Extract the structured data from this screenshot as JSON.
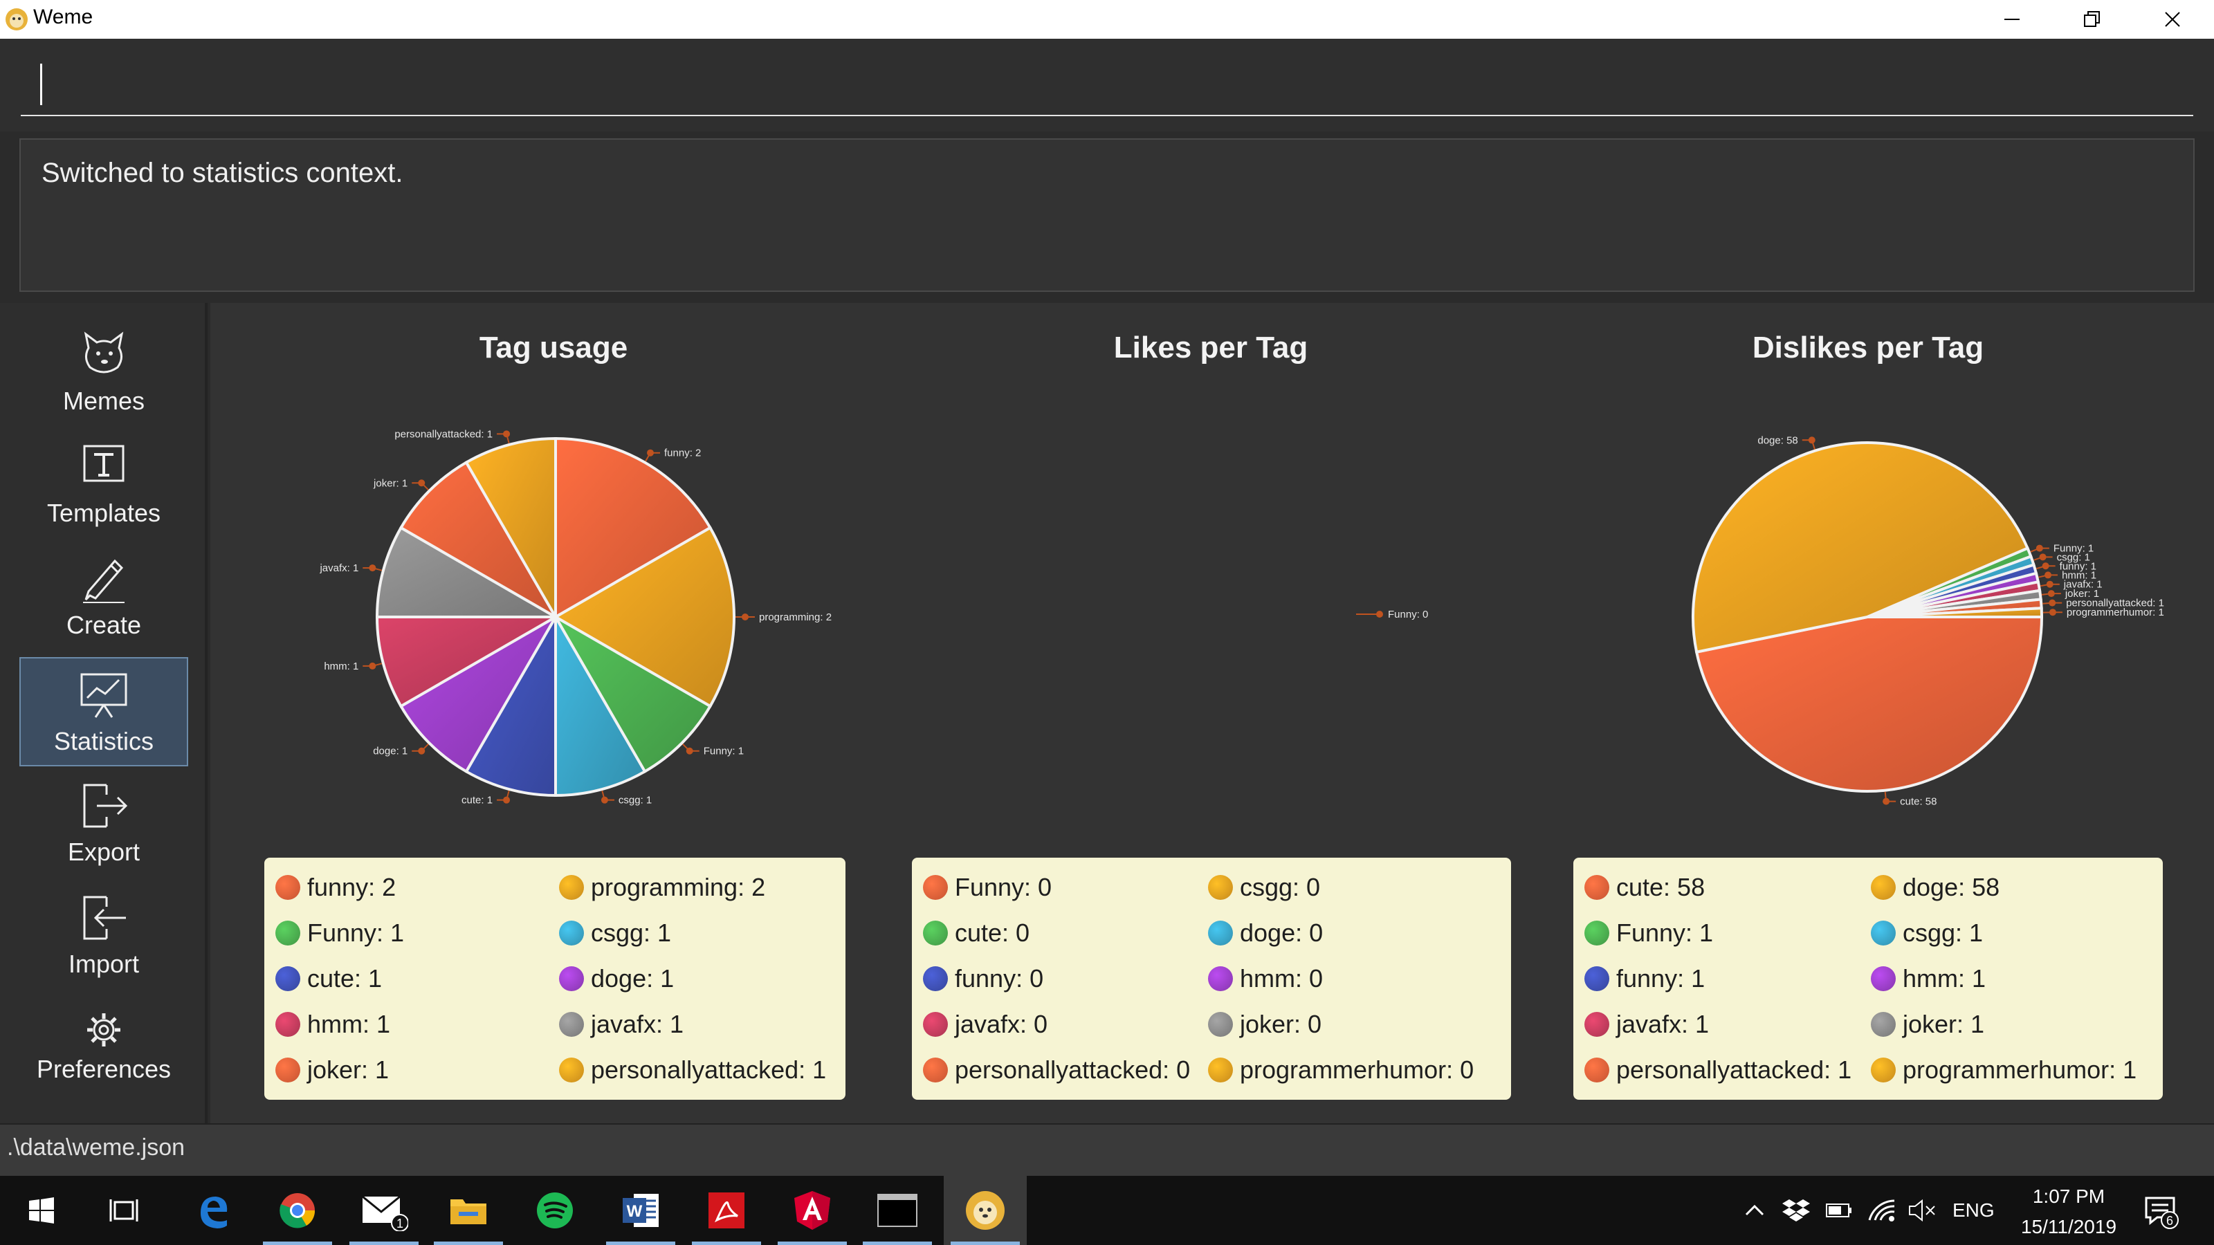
{
  "window": {
    "title": "Weme"
  },
  "command": {
    "value": ""
  },
  "result": {
    "text": "Switched to statistics context."
  },
  "sidebar": {
    "items": [
      {
        "label": "Memes",
        "icon": "doge-icon"
      },
      {
        "label": "Templates",
        "icon": "template-icon"
      },
      {
        "label": "Create",
        "icon": "pencil-icon"
      },
      {
        "label": "Statistics",
        "icon": "statistics-icon",
        "active": true
      },
      {
        "label": "Export",
        "icon": "export-icon"
      },
      {
        "label": "Import",
        "icon": "import-icon"
      },
      {
        "label": "Preferences",
        "icon": "gear-icon"
      }
    ]
  },
  "chart_data": [
    {
      "type": "pie",
      "title": "Tag usage",
      "slices": [
        {
          "label": "funny: 2",
          "value": 2,
          "color": "#e8623a"
        },
        {
          "label": "programming: 2",
          "value": 2,
          "color": "#e8a020"
        },
        {
          "label": "Funny: 1",
          "value": 1,
          "color": "#4caf50"
        },
        {
          "label": "csgg: 1",
          "value": 1,
          "color": "#3aa6c9"
        },
        {
          "label": "cute: 1",
          "value": 1,
          "color": "#3f51b5"
        },
        {
          "label": "doge: 1",
          "value": 1,
          "color": "#9c3fc9"
        },
        {
          "label": "hmm: 1",
          "value": 1,
          "color": "#c43d5e"
        },
        {
          "label": "javafx: 1",
          "value": 1,
          "color": "#8a8a8a"
        },
        {
          "label": "joker: 1",
          "value": 1,
          "color": "#e8623a"
        },
        {
          "label": "personallyattacked: 1",
          "value": 1,
          "color": "#e8a020"
        }
      ],
      "legend": [
        {
          "label": "funny: 2",
          "color": "#e8623a"
        },
        {
          "label": "programming: 2",
          "color": "#e8a020"
        },
        {
          "label": "Funny: 1",
          "color": "#4caf50"
        },
        {
          "label": "csgg: 1",
          "color": "#3aa6c9"
        },
        {
          "label": "cute: 1",
          "color": "#3f51b5"
        },
        {
          "label": "doge: 1",
          "color": "#9c3fc9"
        },
        {
          "label": "hmm: 1",
          "color": "#c43d5e"
        },
        {
          "label": "javafx: 1",
          "color": "#8a8a8a"
        },
        {
          "label": "joker: 1",
          "color": "#e8623a"
        },
        {
          "label": "personallyattacked: 1",
          "color": "#e8a020"
        }
      ]
    },
    {
      "type": "pie",
      "title": "Likes per Tag",
      "slices": [
        {
          "label": "Funny: 0",
          "value": 0,
          "color": "#e8623a"
        }
      ],
      "legend": [
        {
          "label": "Funny: 0",
          "color": "#e8623a"
        },
        {
          "label": "csgg: 0",
          "color": "#e8a020"
        },
        {
          "label": "cute: 0",
          "color": "#4caf50"
        },
        {
          "label": "doge: 0",
          "color": "#3aa6c9"
        },
        {
          "label": "funny: 0",
          "color": "#3f51b5"
        },
        {
          "label": "hmm: 0",
          "color": "#9c3fc9"
        },
        {
          "label": "javafx: 0",
          "color": "#c43d5e"
        },
        {
          "label": "joker: 0",
          "color": "#8a8a8a"
        },
        {
          "label": "personallyattacked: 0",
          "color": "#e8623a"
        },
        {
          "label": "programmerhumor: 0",
          "color": "#e8a020"
        }
      ]
    },
    {
      "type": "pie",
      "title": "Dislikes per Tag",
      "slices": [
        {
          "label": "cute: 58",
          "value": 58,
          "color": "#e8623a"
        },
        {
          "label": "doge: 58",
          "value": 58,
          "color": "#e8a020"
        },
        {
          "label": "Funny: 1",
          "value": 1,
          "color": "#4caf50"
        },
        {
          "label": "csgg: 1",
          "value": 1,
          "color": "#3aa6c9"
        },
        {
          "label": "funny: 1",
          "value": 1,
          "color": "#3f51b5"
        },
        {
          "label": "hmm: 1",
          "value": 1,
          "color": "#9c3fc9"
        },
        {
          "label": "javafx: 1",
          "value": 1,
          "color": "#c43d5e"
        },
        {
          "label": "joker: 1",
          "value": 1,
          "color": "#8a8a8a"
        },
        {
          "label": "personallyattacked: 1",
          "value": 1,
          "color": "#e8623a"
        },
        {
          "label": "programmerhumor: 1",
          "value": 1,
          "color": "#e8a020"
        }
      ],
      "legend": [
        {
          "label": "cute: 58",
          "color": "#e8623a"
        },
        {
          "label": "doge: 58",
          "color": "#e8a020"
        },
        {
          "label": "Funny: 1",
          "color": "#4caf50"
        },
        {
          "label": "csgg: 1",
          "color": "#3aa6c9"
        },
        {
          "label": "funny: 1",
          "color": "#3f51b5"
        },
        {
          "label": "hmm: 1",
          "color": "#9c3fc9"
        },
        {
          "label": "javafx: 1",
          "color": "#c43d5e"
        },
        {
          "label": "joker: 1",
          "color": "#8a8a8a"
        },
        {
          "label": "personallyattacked: 1",
          "color": "#e8623a"
        },
        {
          "label": "programmerhumor: 1",
          "color": "#e8a020"
        }
      ]
    }
  ],
  "statusbar": {
    "path": ".\\data\\weme.json"
  },
  "taskbar": {
    "apps": [
      {
        "icon": "windows-start-icon"
      },
      {
        "icon": "task-view-icon"
      },
      {
        "icon": "edge-icon"
      },
      {
        "icon": "chrome-icon",
        "running": true
      },
      {
        "icon": "mail-icon",
        "badge": "1",
        "running": true
      },
      {
        "icon": "file-explorer-icon",
        "running": true
      },
      {
        "icon": "spotify-icon"
      },
      {
        "icon": "word-icon",
        "running": true
      },
      {
        "icon": "acrobat-icon",
        "running": true
      },
      {
        "icon": "angular-icon",
        "running": true
      },
      {
        "icon": "terminal-icon",
        "running": true
      },
      {
        "icon": "weme-app-icon",
        "running": true,
        "active": true
      }
    ],
    "tray": {
      "language": "ENG",
      "time": "1:07 PM",
      "date": "15/11/2019",
      "notifications": "6"
    }
  }
}
